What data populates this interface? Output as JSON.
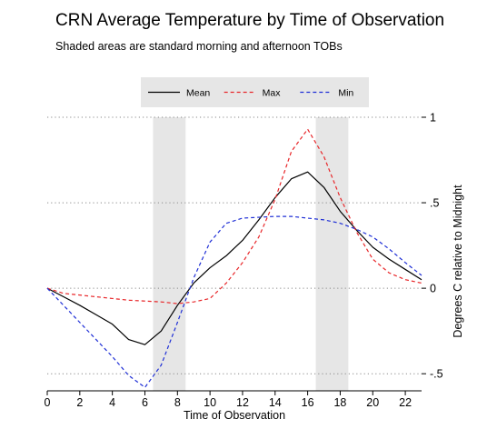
{
  "chart_data": {
    "type": "line",
    "title": "CRN Average Temperature by Time of Observation",
    "subtitle": "Shaded areas are standard morning and afternoon TOBs",
    "xlabel": "Time of Observation",
    "ylabel": "Degrees C relative to Midnight",
    "xlim": [
      0,
      23
    ],
    "ylim": [
      -0.6,
      1
    ],
    "x_ticks": [
      0,
      2,
      4,
      6,
      8,
      10,
      12,
      14,
      16,
      18,
      20,
      22
    ],
    "x_tick_labels": [
      "0",
      "2",
      "4",
      "6",
      "8",
      "10",
      "12",
      "14",
      "16",
      "18",
      "20",
      "22"
    ],
    "y_ticks": [
      -0.5,
      0,
      0.5,
      1
    ],
    "y_tick_labels": [
      "-.5",
      "0",
      ".5",
      "1"
    ],
    "y_axis_side": "right",
    "grid": "horizontal dotted",
    "legend_position": "top",
    "shaded_bands": [
      [
        6.5,
        8.5
      ],
      [
        16.5,
        18.5
      ]
    ],
    "shade_color": "#e6e6e6",
    "x": [
      0,
      1,
      2,
      3,
      4,
      5,
      6,
      7,
      8,
      9,
      10,
      11,
      12,
      13,
      14,
      15,
      16,
      17,
      18,
      19,
      20,
      21,
      22,
      23
    ],
    "series": [
      {
        "name": "Mean",
        "color": "#000000",
        "dash": "solid",
        "values": [
          0,
          -0.05,
          -0.1,
          -0.155,
          -0.21,
          -0.3,
          -0.33,
          -0.25,
          -0.1,
          0.03,
          0.12,
          0.19,
          0.28,
          0.4,
          0.53,
          0.64,
          0.68,
          0.59,
          0.45,
          0.34,
          0.24,
          0.17,
          0.11,
          0.05
        ]
      },
      {
        "name": "Max",
        "color": "#e8272a",
        "dash": "dashed",
        "values": [
          0,
          -0.03,
          -0.04,
          -0.05,
          -0.06,
          -0.07,
          -0.075,
          -0.08,
          -0.09,
          -0.08,
          -0.06,
          0.03,
          0.15,
          0.3,
          0.52,
          0.8,
          0.93,
          0.77,
          0.53,
          0.33,
          0.17,
          0.09,
          0.05,
          0.03
        ]
      },
      {
        "name": "Min",
        "color": "#1f2fd6",
        "dash": "dashed",
        "values": [
          0,
          -0.1,
          -0.2,
          -0.3,
          -0.4,
          -0.51,
          -0.58,
          -0.45,
          -0.2,
          0.06,
          0.27,
          0.38,
          0.41,
          0.415,
          0.42,
          0.42,
          0.41,
          0.4,
          0.38,
          0.345,
          0.3,
          0.23,
          0.15,
          0.075
        ]
      }
    ]
  }
}
